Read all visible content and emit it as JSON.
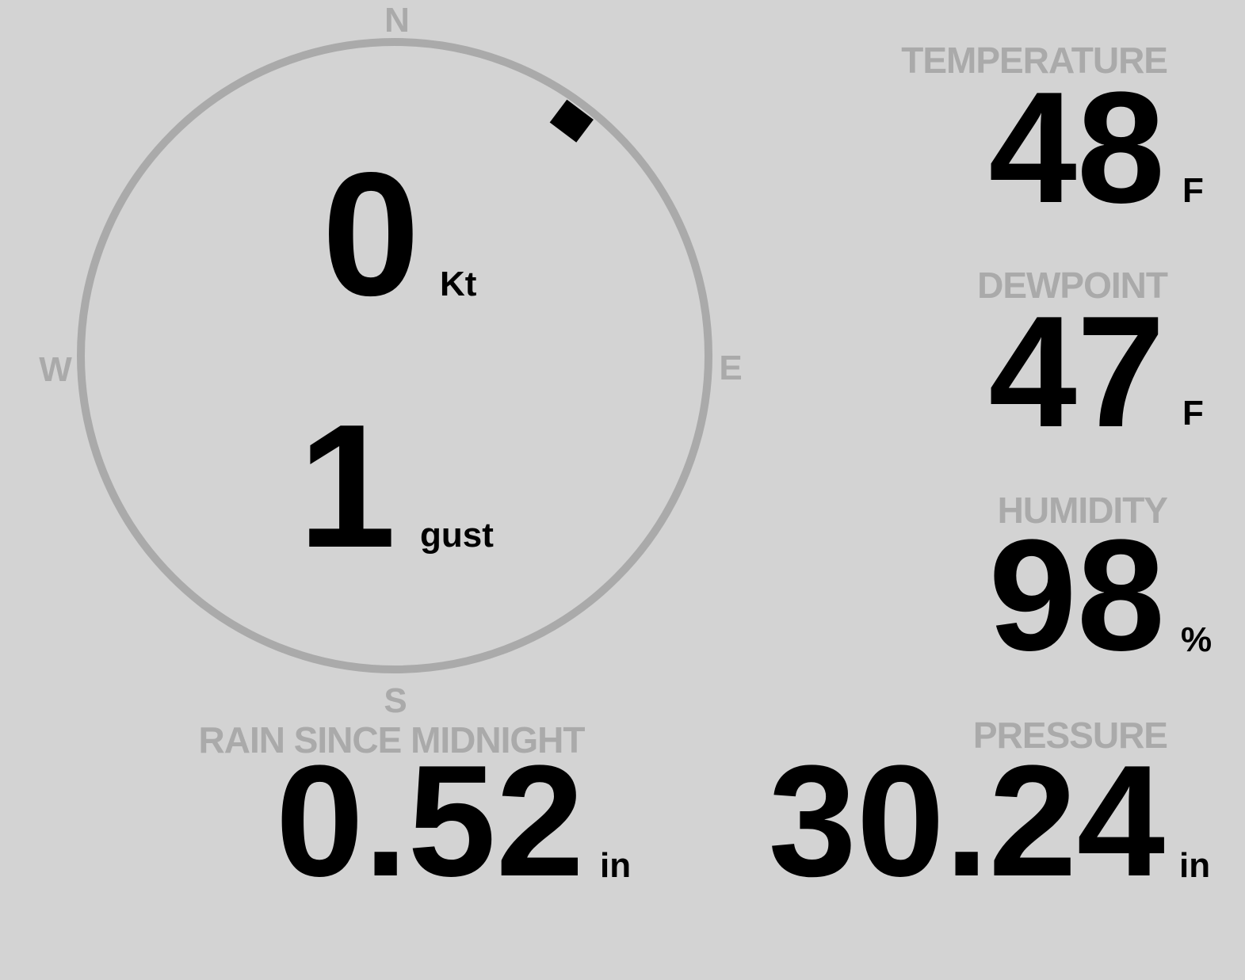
{
  "colors": {
    "background": "#d3d3d3",
    "muted": "#aaaaaa",
    "value": "#000000"
  },
  "compass": {
    "north": "N",
    "east": "E",
    "south": "S",
    "west": "W"
  },
  "wind": {
    "speed": "0",
    "speed_unit": "Kt",
    "gust": "1",
    "gust_label": "gust",
    "direction_deg": 37
  },
  "temperature": {
    "label": "TEMPERATURE",
    "value": "48",
    "unit": "F"
  },
  "dewpoint": {
    "label": "DEWPOINT",
    "value": "47",
    "unit": "F"
  },
  "humidity": {
    "label": "HUMIDITY",
    "value": "98",
    "unit": "%"
  },
  "pressure": {
    "label": "PRESSURE",
    "value": "30.24",
    "unit": "in"
  },
  "rain": {
    "label": "RAIN SINCE MIDNIGHT",
    "value": "0.52",
    "unit": "in"
  }
}
